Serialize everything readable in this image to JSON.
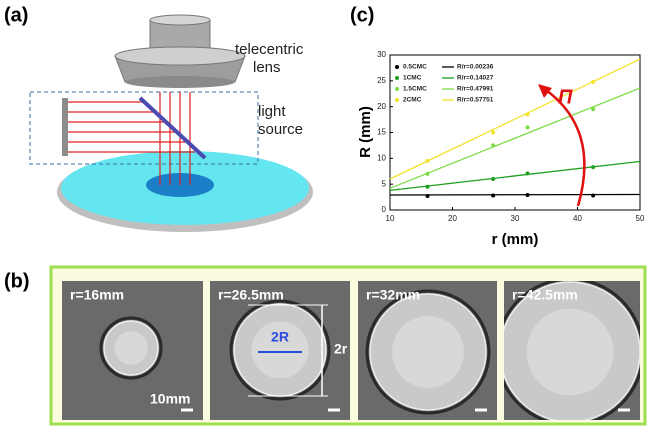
{
  "panel_a": {
    "label": "(a)",
    "lens_label": [
      "telecentric",
      "lens"
    ],
    "source_label": [
      "light",
      "source"
    ]
  },
  "panel_b": {
    "label": "(b)",
    "captions": [
      "r=16mm",
      "r=26.5mm",
      "r=32mm",
      "r=42.5mm"
    ],
    "inner_label": "2R",
    "outer_label": "2r",
    "scale_bar": "10mm"
  },
  "chart_data": {
    "type": "scatter",
    "panel_label": "(c)",
    "x_label": "r (mm)",
    "y_label": "R (mm)",
    "annotation": "Π",
    "x": [
      16,
      26.5,
      32,
      42.5
    ],
    "series": [
      {
        "name": "0.5CMC",
        "color": "#000000",
        "values": [
          2.7,
          2.8,
          2.9,
          2.8
        ],
        "fit": {
          "name": "R/r=0.00236",
          "x": [
            10,
            50
          ],
          "values": [
            2.9,
            3.0
          ]
        }
      },
      {
        "name": "1CMC",
        "color": "#1f9e1f",
        "values": [
          4.5,
          6.0,
          7.1,
          8.3
        ],
        "fit": {
          "name": "R/r=0.14027",
          "x": [
            10,
            50
          ],
          "values": [
            3.8,
            9.4
          ]
        }
      },
      {
        "name": "1.5CMC",
        "color": "#7ddc46",
        "values": [
          7.0,
          12.5,
          16.0,
          19.5
        ],
        "fit": {
          "name": "R/r=0.47991",
          "x": [
            10,
            50
          ],
          "values": [
            4.2,
            23.6
          ]
        }
      },
      {
        "name": "2CMC",
        "color": "#f2e22a",
        "values": [
          9.5,
          15.0,
          18.5,
          24.8
        ],
        "fit": {
          "name": "R/r=0.57751",
          "x": [
            10,
            50
          ],
          "values": [
            6.0,
            29.2
          ]
        }
      }
    ],
    "xlim": [
      10,
      50
    ],
    "xticks": [
      10,
      20,
      30,
      40,
      50
    ],
    "ylim": [
      0,
      30
    ],
    "yticks": [
      0,
      5,
      10,
      15,
      20,
      25,
      30
    ]
  }
}
